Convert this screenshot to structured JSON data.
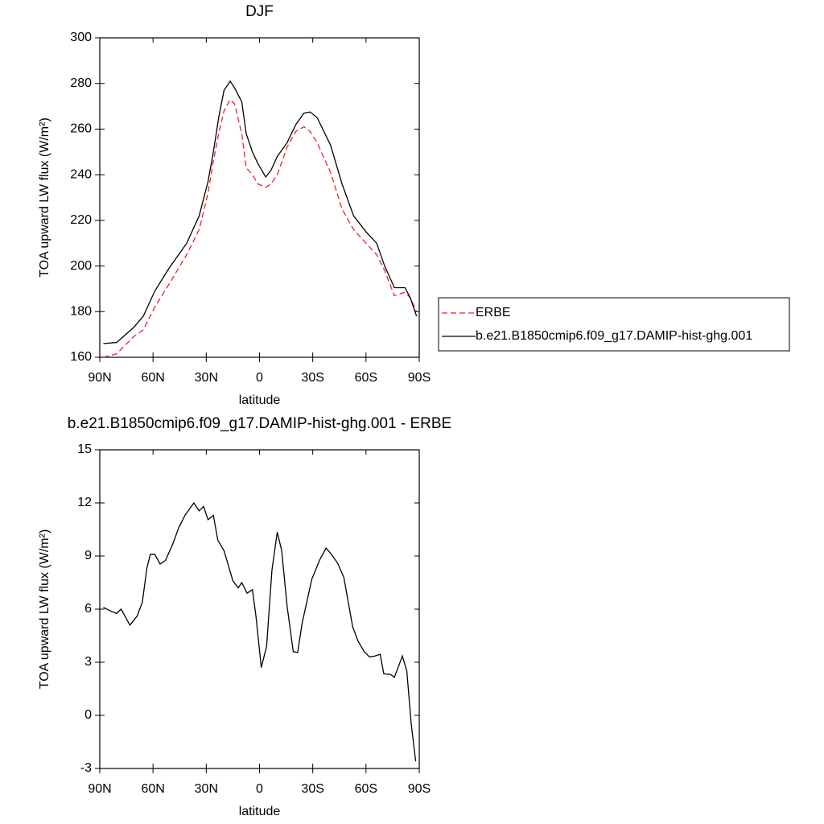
{
  "chart_data": [
    {
      "type": "line",
      "title": "DJF",
      "xlabel": "latitude",
      "ylabel": "TOA upward LW flux (W/m²)",
      "x": [
        88,
        80.5,
        71,
        65.5,
        59,
        51,
        41,
        34,
        29,
        26,
        23,
        20,
        16.5,
        14,
        10,
        7.5,
        4,
        1,
        -3.5,
        -6.5,
        -10,
        -15.5,
        -20.5,
        -25,
        -28.5,
        -32.5,
        -40,
        -46.5,
        -53,
        -60,
        -66,
        -70.5,
        -76,
        -82,
        -85,
        -88.5
      ],
      "series": [
        {
          "name": "ERBE",
          "color": "#e8222a",
          "linestyle": "dashed",
          "values": [
            160,
            161.5,
            169,
            172,
            182,
            192,
            205,
            216,
            232,
            246,
            258,
            268,
            273,
            271,
            258,
            243,
            240,
            236,
            234.5,
            236,
            240,
            252,
            259,
            261,
            259,
            254,
            241,
            225,
            216,
            210,
            205,
            198,
            187,
            188.5,
            186,
            180
          ]
        },
        {
          "name": "b.e21.B1850cmip6.f09_g17.DAMIP-hist-ghg.001",
          "color": "#000000",
          "linestyle": "solid",
          "values": [
            166,
            166.5,
            173,
            178,
            189,
            199,
            210,
            222,
            237,
            250,
            265,
            277,
            281,
            278,
            272,
            258,
            250,
            245,
            239,
            242,
            248,
            254,
            262,
            267,
            267.5,
            265,
            253,
            236,
            222,
            215,
            210,
            200,
            190.5,
            190.5,
            186,
            178
          ]
        }
      ],
      "xlim": [
        90,
        -90
      ],
      "xticks": [
        {
          "value": 90,
          "label": "90N"
        },
        {
          "value": 60,
          "label": "60N"
        },
        {
          "value": 30,
          "label": "30N"
        },
        0,
        {
          "value": -30,
          "label": "30S"
        },
        {
          "value": -60,
          "label": "60S"
        },
        {
          "value": -90,
          "label": "90S"
        }
      ],
      "ylim": [
        160,
        300
      ],
      "yticks": [
        160,
        180,
        200,
        220,
        240,
        260,
        280,
        300
      ],
      "legend": "right"
    },
    {
      "type": "line",
      "title": "b.e21.B1850cmip6.f09_g17.DAMIP-hist-ghg.001 - ERBE",
      "xlabel": "latitude",
      "ylabel": "TOA upward LW flux (W/m²)",
      "x": [
        88,
        84,
        80.5,
        78,
        73,
        69,
        66,
        63.5,
        61.5,
        59,
        56,
        53,
        49,
        45.5,
        42,
        37,
        34,
        31.5,
        29,
        26,
        23.5,
        20,
        15,
        12,
        10,
        7,
        4,
        2,
        -1,
        -4,
        -7,
        -10,
        -12.5,
        -15.5,
        -19,
        -21.5,
        -24,
        -29.5,
        -34,
        -37.5,
        -40.5,
        -44,
        -47.5,
        -52.5,
        -55.5,
        -59,
        -62,
        -65,
        -68,
        -70,
        -74,
        -76,
        -80.5,
        -83,
        -85.5,
        -88
      ],
      "values": [
        6.1,
        5.9,
        5.75,
        6.0,
        5.1,
        5.6,
        6.4,
        8.3,
        9.1,
        9.1,
        8.55,
        8.75,
        9.65,
        10.6,
        11.3,
        12.0,
        11.55,
        11.8,
        11.05,
        11.3,
        9.9,
        9.3,
        7.6,
        7.2,
        7.5,
        6.9,
        7.1,
        5.6,
        2.7,
        3.9,
        8.2,
        10.35,
        9.3,
        6.2,
        3.6,
        3.55,
        5.2,
        7.7,
        8.8,
        9.45,
        9.1,
        8.6,
        7.8,
        5.0,
        4.2,
        3.6,
        3.3,
        3.35,
        3.45,
        2.35,
        2.3,
        2.15,
        3.35,
        2.5,
        -0.5,
        -2.6
      ],
      "color": "#000000",
      "xlim": [
        90,
        -90
      ],
      "xticks": [
        {
          "value": 90,
          "label": "90N"
        },
        {
          "value": 60,
          "label": "60N"
        },
        {
          "value": 30,
          "label": "30N"
        },
        0,
        {
          "value": -30,
          "label": "30S"
        },
        {
          "value": -60,
          "label": "60S"
        },
        {
          "value": -90,
          "label": "90S"
        }
      ],
      "ylim": [
        -3,
        15
      ],
      "yticks": [
        -3,
        0,
        3,
        6,
        9,
        12,
        15
      ]
    }
  ]
}
